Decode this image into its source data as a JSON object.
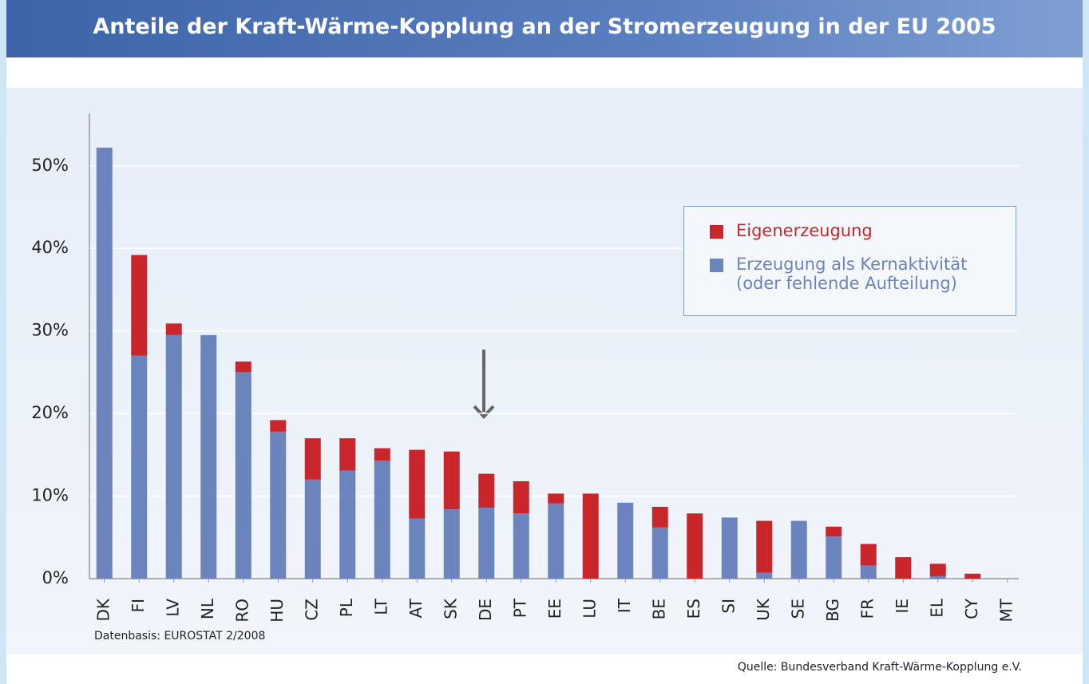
{
  "chart_data": {
    "type": "stacked_bar",
    "title": "Anteile der Kraft-Wärme-Kopplung an der Stromerzeugung in der EU 2005",
    "categories": [
      "DK",
      "FI",
      "LV",
      "NL",
      "RO",
      "HU",
      "CZ",
      "PL",
      "LT",
      "AT",
      "SK",
      "DE",
      "PT",
      "EE",
      "LU",
      "IT",
      "BE",
      "ES",
      "SI",
      "UK",
      "SE",
      "BG",
      "FR",
      "IE",
      "EL",
      "CY",
      "MT"
    ],
    "series": [
      {
        "name": "Erzeugung als Kernaktivität (oder fehlende Aufteilung)",
        "color": "#6b84bd",
        "values": [
          52.2,
          27.0,
          29.5,
          29.5,
          25.0,
          17.8,
          12.0,
          13.1,
          14.3,
          7.3,
          8.4,
          8.6,
          7.9,
          9.1,
          0,
          9.2,
          6.2,
          0,
          7.4,
          0.7,
          7.0,
          5.1,
          1.6,
          0,
          0.3,
          0,
          0
        ]
      },
      {
        "name": "Eigenerzeugung",
        "color": "#c8262b",
        "values": [
          0,
          12.2,
          1.4,
          0,
          1.3,
          1.4,
          5.0,
          3.9,
          1.5,
          8.3,
          7.0,
          4.1,
          3.9,
          1.2,
          10.3,
          0,
          2.5,
          7.9,
          0,
          6.3,
          0,
          1.2,
          2.6,
          2.6,
          1.5,
          0.6,
          0
        ]
      }
    ],
    "ylim": [
      0,
      58
    ],
    "yticks": [
      {
        "value": 0,
        "label": "0%"
      },
      {
        "value": 10,
        "label": "10%"
      },
      {
        "value": 20,
        "label": "20%"
      },
      {
        "value": 30,
        "label": "30%"
      },
      {
        "value": 40,
        "label": "40%"
      },
      {
        "value": 50,
        "label": "50%"
      }
    ],
    "grid": true,
    "note": "Datenbasis: EUROSTAT 2/2008",
    "source": "Quelle: Bundesverband Kraft-Wärme-Kopplung e.V."
  }
}
